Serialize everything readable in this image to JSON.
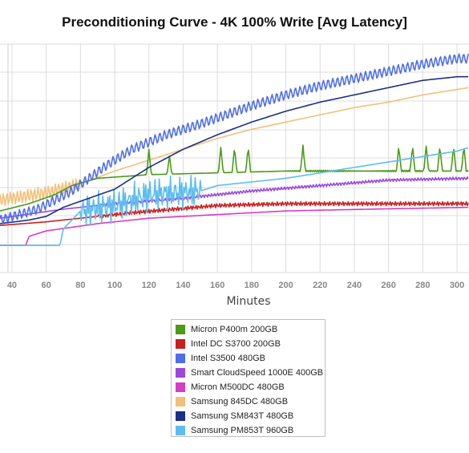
{
  "chart_data": {
    "type": "line",
    "title": "Preconditioning Curve - 4K 100% Write [Avg Latency]",
    "xlabel": "Minutes",
    "ylabel": "",
    "x_ticks": [
      40,
      60,
      80,
      100,
      120,
      140,
      160,
      180,
      200,
      220,
      240,
      260,
      280,
      300
    ],
    "xlim": [
      33,
      307
    ],
    "grid": true,
    "legend_position": "bottom",
    "series": [
      {
        "name": "Micron P400m 200GB",
        "color": "#4c9a1a",
        "points": [
          [
            33,
            34
          ],
          [
            50,
            38
          ],
          [
            65,
            43
          ],
          [
            75,
            48
          ],
          [
            90,
            52
          ],
          [
            120,
            54
          ],
          [
            160,
            55
          ],
          [
            200,
            56
          ],
          [
            240,
            56
          ],
          [
            280,
            56
          ],
          [
            307,
            56
          ]
        ],
        "spikes": [
          120,
          132,
          162,
          170,
          178,
          210,
          266,
          274,
          282,
          290,
          298,
          304
        ]
      },
      {
        "name": "Intel DC S3700 200GB",
        "color": "#c8201e",
        "points": [
          [
            33,
            26
          ],
          [
            60,
            28
          ],
          [
            80,
            30
          ],
          [
            110,
            33
          ],
          [
            160,
            37
          ],
          [
            200,
            38
          ],
          [
            250,
            38
          ],
          [
            307,
            38
          ]
        ]
      },
      {
        "name": "Intel S3500 480GB",
        "color": "#4f6ee8",
        "points": [
          [
            33,
            29
          ],
          [
            55,
            35
          ],
          [
            75,
            45
          ],
          [
            95,
            59
          ],
          [
            110,
            68
          ],
          [
            130,
            76
          ],
          [
            150,
            82
          ],
          [
            180,
            92
          ],
          [
            200,
            98
          ],
          [
            220,
            103
          ],
          [
            240,
            107
          ],
          [
            260,
            111
          ],
          [
            280,
            115
          ],
          [
            300,
            118
          ],
          [
            307,
            118
          ]
        ]
      },
      {
        "name": "Smart CloudSpeed 1000E 400GB",
        "color": "#9a48dc",
        "points": [
          [
            33,
            30
          ],
          [
            70,
            35
          ],
          [
            100,
            38
          ],
          [
            140,
            41
          ],
          [
            180,
            45
          ],
          [
            220,
            48
          ],
          [
            260,
            51
          ],
          [
            307,
            52
          ]
        ]
      },
      {
        "name": "Micron M500DC 480GB",
        "color": "#d63dc5",
        "points": [
          [
            33,
            15
          ],
          [
            48,
            15
          ],
          [
            50,
            20
          ],
          [
            60,
            23
          ],
          [
            90,
            27
          ],
          [
            120,
            30
          ],
          [
            160,
            32
          ],
          [
            200,
            34
          ],
          [
            250,
            35
          ],
          [
            307,
            36
          ]
        ]
      },
      {
        "name": "Samsung 845DC 480GB",
        "color": "#f2c079",
        "points": [
          [
            33,
            40
          ],
          [
            60,
            44
          ],
          [
            80,
            49
          ],
          [
            100,
            56
          ],
          [
            120,
            62
          ],
          [
            140,
            68
          ],
          [
            160,
            74
          ],
          [
            180,
            79
          ],
          [
            200,
            83
          ],
          [
            220,
            87
          ],
          [
            240,
            91
          ],
          [
            260,
            94
          ],
          [
            280,
            98
          ],
          [
            307,
            102
          ]
        ]
      },
      {
        "name": "Samsung SM843T 480GB",
        "color": "#1c2f86",
        "points": [
          [
            33,
            27
          ],
          [
            50,
            29
          ],
          [
            60,
            31
          ],
          [
            70,
            36
          ],
          [
            85,
            41
          ],
          [
            100,
            46
          ],
          [
            120,
            58
          ],
          [
            140,
            68
          ],
          [
            160,
            76
          ],
          [
            180,
            83
          ],
          [
            200,
            89
          ],
          [
            220,
            94
          ],
          [
            240,
            98
          ],
          [
            260,
            102
          ],
          [
            280,
            106
          ],
          [
            300,
            108
          ],
          [
            307,
            108
          ]
        ]
      },
      {
        "name": "Samsung PM853T 960GB",
        "color": "#5dbdf0",
        "points": [
          [
            33,
            15
          ],
          [
            60,
            15
          ],
          [
            68,
            15
          ],
          [
            70,
            24
          ],
          [
            80,
            34
          ],
          [
            100,
            37
          ],
          [
            120,
            43
          ],
          [
            150,
            45
          ],
          [
            160,
            48
          ],
          [
            180,
            50
          ],
          [
            200,
            52
          ],
          [
            220,
            55
          ],
          [
            240,
            58
          ],
          [
            260,
            61
          ],
          [
            280,
            64
          ],
          [
            300,
            67
          ],
          [
            307,
            69
          ]
        ],
        "noisy_range": [
          80,
          150
        ]
      }
    ]
  }
}
